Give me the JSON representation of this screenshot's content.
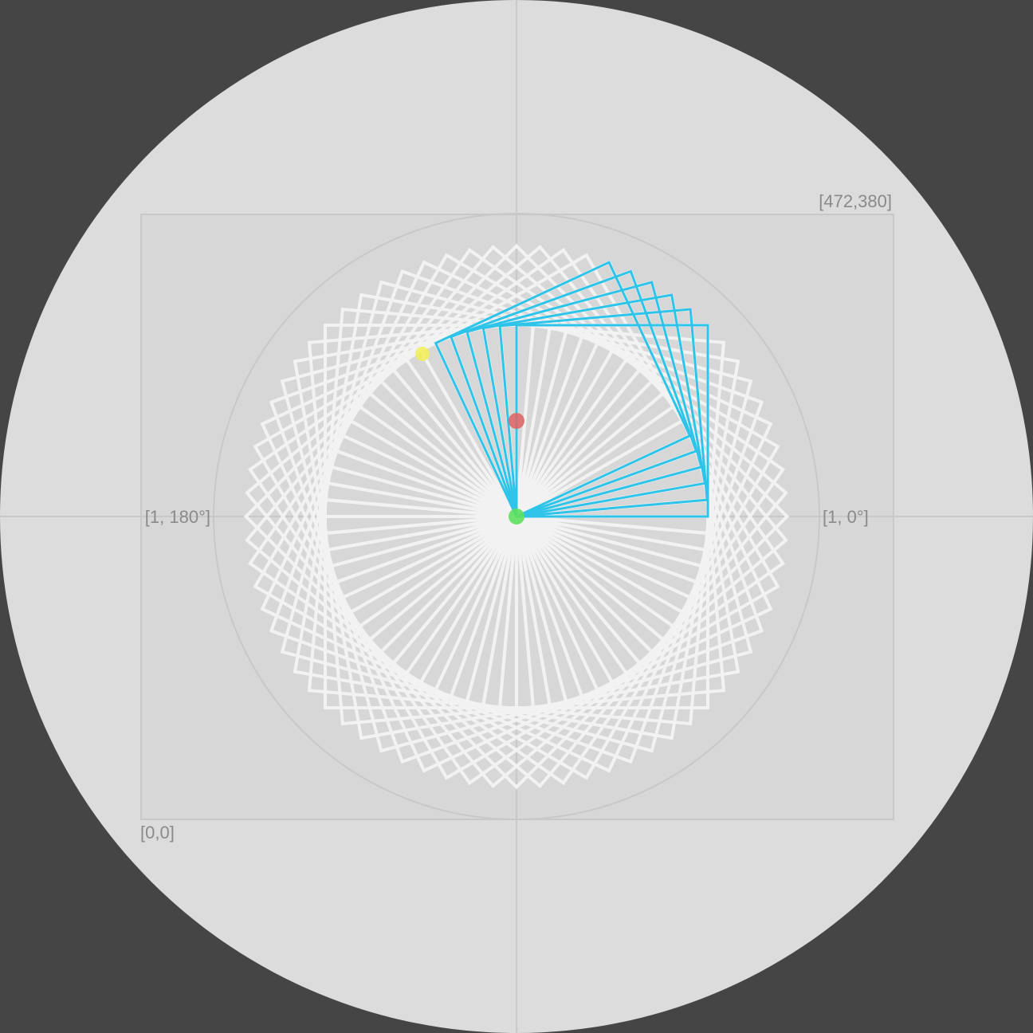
{
  "labels": {
    "top_right": "[472,380]",
    "bottom_left": "[0,0]",
    "right_axis": "[1, 0°]",
    "left_axis": "[1, 180°]"
  },
  "colors": {
    "background": "#454545",
    "disc": "#dcdcdc",
    "rect_fill": "#d7d7d7",
    "guide_stroke": "#c8c8c8",
    "trail_stroke": "#f2f2f2",
    "active_stroke": "#2ec4e9",
    "red_point": "#e06060",
    "green_point": "#5ee05e",
    "yellow_point": "#f2ee5e"
  },
  "points": {
    "red": {
      "name": "red-point"
    },
    "green": {
      "name": "green-point"
    },
    "yellow": {
      "name": "yellow-point"
    }
  },
  "figure": {
    "trail_square_count": 72,
    "active_square_count": 6,
    "rotation_step_deg": 5
  }
}
